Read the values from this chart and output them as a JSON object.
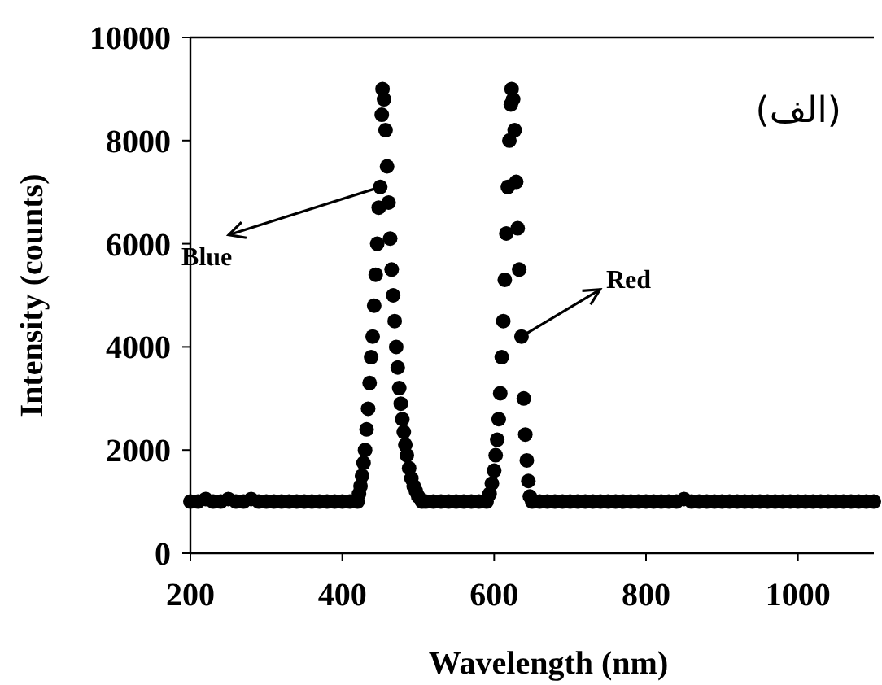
{
  "chart_data": {
    "type": "scatter",
    "xlabel": "Wavelength (nm)",
    "ylabel": "Intensity (counts)",
    "xlim": [
      200,
      1100
    ],
    "ylim": [
      0,
      10000
    ],
    "xticks": [
      200,
      400,
      600,
      800,
      1000
    ],
    "yticks": [
      0,
      2000,
      4000,
      6000,
      8000,
      10000
    ],
    "grid": false,
    "marker": "circle",
    "annotations": [
      {
        "text": "Blue",
        "x": 450,
        "y": 7100
      },
      {
        "text": "Red",
        "x": 636,
        "y": 4200
      },
      "(الف)"
    ],
    "series": [
      {
        "color": "#000000",
        "x": [
          200,
          210,
          220,
          230,
          240,
          250,
          260,
          270,
          280,
          290,
          300,
          310,
          320,
          330,
          340,
          350,
          360,
          370,
          380,
          390,
          400,
          410,
          420,
          422,
          424,
          426,
          428,
          430,
          432,
          434,
          436,
          438,
          440,
          442,
          444,
          446,
          448,
          450,
          452,
          453,
          455,
          457,
          459,
          461,
          463,
          465,
          467,
          469,
          471,
          473,
          475,
          477,
          479,
          481,
          483,
          485,
          488,
          491,
          494,
          497,
          500,
          505,
          510,
          520,
          530,
          540,
          550,
          560,
          570,
          580,
          590,
          594,
          597,
          600,
          602,
          604,
          606,
          608,
          610,
          612,
          614,
          616,
          618,
          620,
          622,
          623,
          625,
          627,
          629,
          631,
          633,
          636,
          639,
          641,
          643,
          645,
          647,
          650,
          660,
          670,
          680,
          690,
          700,
          710,
          720,
          730,
          740,
          750,
          760,
          770,
          780,
          790,
          800,
          810,
          820,
          830,
          840,
          850,
          860,
          870,
          880,
          890,
          900,
          910,
          920,
          930,
          940,
          950,
          960,
          970,
          980,
          990,
          1000,
          1010,
          1020,
          1030,
          1040,
          1050,
          1060,
          1070,
          1080,
          1090,
          1100
        ],
        "values": [
          1000,
          1000,
          1050,
          1000,
          1000,
          1050,
          1000,
          1000,
          1050,
          1000,
          1000,
          1000,
          1000,
          1000,
          1000,
          1000,
          1000,
          1000,
          1000,
          1000,
          1000,
          1000,
          1000,
          1150,
          1300,
          1500,
          1750,
          2000,
          2400,
          2800,
          3300,
          3800,
          4200,
          4800,
          5400,
          6000,
          6700,
          7100,
          8500,
          9000,
          8800,
          8200,
          7500,
          6800,
          6100,
          5500,
          5000,
          4500,
          4000,
          3600,
          3200,
          2900,
          2600,
          2350,
          2100,
          1900,
          1650,
          1450,
          1300,
          1200,
          1100,
          1000,
          1000,
          1000,
          1000,
          1000,
          1000,
          1000,
          1000,
          1000,
          1000,
          1150,
          1350,
          1600,
          1900,
          2200,
          2600,
          3100,
          3800,
          4500,
          5300,
          6200,
          7100,
          8000,
          8700,
          9000,
          8800,
          8200,
          7200,
          6300,
          5500,
          4200,
          3000,
          2300,
          1800,
          1400,
          1100,
          1000,
          1000,
          1000,
          1000,
          1000,
          1000,
          1000,
          1000,
          1000,
          1000,
          1000,
          1000,
          1000,
          1000,
          1000,
          1000,
          1000,
          1000,
          1000,
          1000,
          1050,
          1000,
          1000,
          1000,
          1000,
          1000,
          1000,
          1000,
          1000,
          1000,
          1000,
          1000,
          1000,
          1000,
          1000,
          1000,
          1000,
          1000,
          1000,
          1000,
          1000,
          1000,
          1000,
          1000,
          1000,
          1000
        ]
      }
    ]
  }
}
